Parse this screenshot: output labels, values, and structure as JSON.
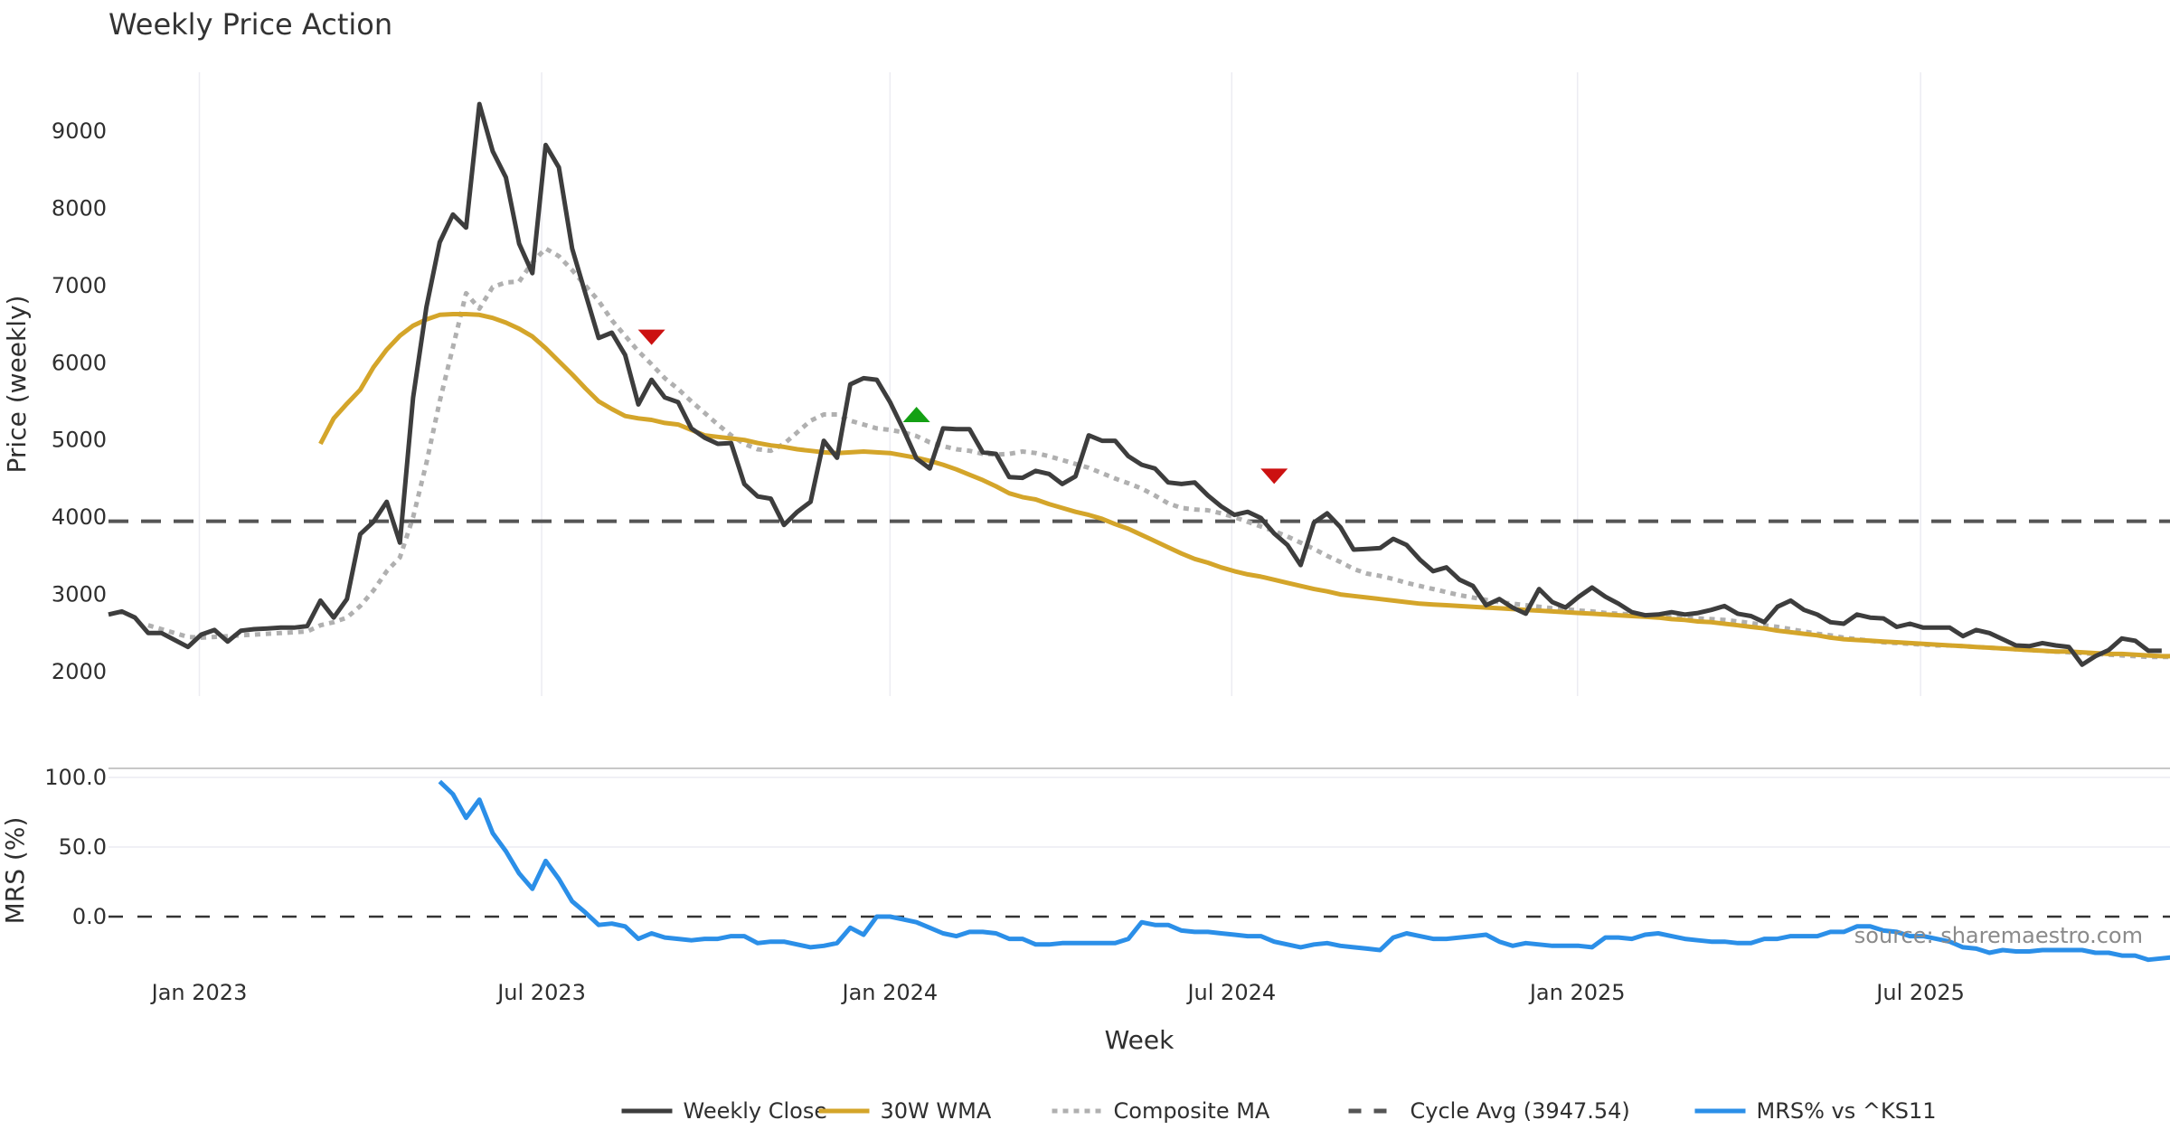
{
  "chart_data": [
    {
      "panel": "price",
      "type": "line",
      "title": "Weekly Price Action",
      "xlabel": "Week",
      "ylabel": "Price (weekly)",
      "ylim": [
        1700,
        9800
      ],
      "yticks": [
        2000,
        3000,
        4000,
        5000,
        6000,
        7000,
        8000,
        9000
      ],
      "x_start": "2022-11-21",
      "x_step_days": 7,
      "grid": "vertical",
      "series": [
        {
          "name": "Weekly Close",
          "color": "#3d3d3d",
          "style": "solid",
          "start_index": 0,
          "values": [
            2740,
            2780,
            2700,
            2500,
            2500,
            2410,
            2320,
            2480,
            2540,
            2390,
            2530,
            2550,
            2560,
            2570,
            2570,
            2590,
            2920,
            2700,
            2940,
            3780,
            3940,
            4200,
            3670,
            5550,
            6720,
            7560,
            7920,
            7750,
            9350,
            8740,
            8400,
            7540,
            7160,
            8820,
            8530,
            7480,
            6900,
            6320,
            6390,
            6100,
            5460,
            5780,
            5550,
            5490,
            5150,
            5030,
            4950,
            4960,
            4430,
            4270,
            4240,
            3900,
            4070,
            4200,
            4990,
            4770,
            5720,
            5800,
            5780,
            5490,
            5140,
            4760,
            4630,
            5150,
            5140,
            5140,
            4840,
            4820,
            4520,
            4510,
            4600,
            4560,
            4430,
            4530,
            5060,
            4990,
            4990,
            4790,
            4680,
            4630,
            4450,
            4430,
            4450,
            4280,
            4140,
            4030,
            4070,
            3990,
            3790,
            3640,
            3380,
            3930,
            4050,
            3870,
            3580,
            3590,
            3600,
            3720,
            3640,
            3450,
            3300,
            3350,
            3190,
            3110,
            2860,
            2940,
            2830,
            2750,
            3070,
            2900,
            2830,
            2970,
            3090,
            2970,
            2880,
            2770,
            2730,
            2740,
            2770,
            2740,
            2760,
            2800,
            2850,
            2750,
            2720,
            2640,
            2840,
            2920,
            2800,
            2740,
            2640,
            2620,
            2740,
            2700,
            2690,
            2580,
            2620,
            2570,
            2570,
            2570,
            2460,
            2540,
            2500,
            2420,
            2340,
            2330,
            2370,
            2340,
            2320,
            2090,
            2200,
            2280,
            2430,
            2400,
            2270,
            2270
          ]
        },
        {
          "name": "30W WMA",
          "color": "#d4a52a",
          "style": "solid",
          "start_index": 16,
          "values": [
            4950,
            5280,
            5470,
            5650,
            5940,
            6170,
            6350,
            6480,
            6560,
            6620,
            6630,
            6630,
            6620,
            6580,
            6520,
            6440,
            6340,
            6190,
            6020,
            5850,
            5670,
            5500,
            5400,
            5310,
            5280,
            5260,
            5220,
            5200,
            5130,
            5060,
            5040,
            5020,
            5000,
            4960,
            4930,
            4910,
            4880,
            4860,
            4840,
            4830,
            4840,
            4850,
            4840,
            4830,
            4800,
            4770,
            4730,
            4680,
            4620,
            4550,
            4480,
            4400,
            4310,
            4260,
            4230,
            4170,
            4120,
            4070,
            4030,
            3980,
            3910,
            3850,
            3770,
            3690,
            3610,
            3530,
            3460,
            3410,
            3350,
            3300,
            3260,
            3230,
            3190,
            3150,
            3110,
            3070,
            3040,
            3000,
            2980,
            2960,
            2940,
            2920,
            2900,
            2880,
            2870,
            2860,
            2850,
            2840,
            2830,
            2820,
            2810,
            2800,
            2790,
            2780,
            2770,
            2760,
            2750,
            2740,
            2730,
            2720,
            2710,
            2700,
            2680,
            2670,
            2650,
            2640,
            2620,
            2600,
            2580,
            2560,
            2530,
            2510,
            2490,
            2470,
            2440,
            2420,
            2410,
            2400,
            2390,
            2380,
            2370,
            2360,
            2350,
            2340,
            2330,
            2320,
            2310,
            2300,
            2290,
            2280,
            2270,
            2260,
            2260,
            2250,
            2240,
            2230,
            2230,
            2220,
            2210,
            2200,
            2200
          ]
        },
        {
          "name": "Composite MA",
          "color": "#b0b0b0",
          "style": "dotted",
          "start_index": 3,
          "values": [
            2600,
            2550,
            2500,
            2450,
            2440,
            2450,
            2460,
            2470,
            2480,
            2490,
            2500,
            2510,
            2520,
            2600,
            2640,
            2700,
            2850,
            3050,
            3300,
            3480,
            4000,
            4700,
            5500,
            6200,
            6900,
            6700,
            6980,
            7040,
            7050,
            7300,
            7480,
            7380,
            7200,
            7000,
            6800,
            6550,
            6350,
            6150,
            5980,
            5800,
            5660,
            5500,
            5350,
            5200,
            5060,
            4950,
            4880,
            4860,
            4950,
            5100,
            5250,
            5330,
            5330,
            5250,
            5200,
            5150,
            5130,
            5100,
            5050,
            4970,
            4920,
            4880,
            4860,
            4820,
            4810,
            4820,
            4850,
            4830,
            4790,
            4740,
            4690,
            4640,
            4570,
            4500,
            4440,
            4370,
            4280,
            4180,
            4120,
            4100,
            4090,
            4050,
            4000,
            3940,
            3880,
            3820,
            3750,
            3670,
            3590,
            3500,
            3420,
            3330,
            3270,
            3240,
            3200,
            3150,
            3110,
            3070,
            3030,
            2990,
            2960,
            2930,
            2900,
            2880,
            2860,
            2840,
            2820,
            2810,
            2790,
            2780,
            2760,
            2750,
            2740,
            2730,
            2720,
            2710,
            2700,
            2690,
            2680,
            2670,
            2650,
            2630,
            2600,
            2580,
            2550,
            2520,
            2490,
            2470,
            2440,
            2420,
            2400,
            2380,
            2370,
            2360,
            2350,
            2340,
            2340,
            2330,
            2320,
            2310,
            2300,
            2290,
            2280,
            2270,
            2260,
            2250,
            2240,
            2230,
            2220,
            2210,
            2200,
            2190,
            2190,
            2190
          ]
        },
        {
          "name": "Cycle Avg (3947.54)",
          "color": "#555555",
          "style": "dashed",
          "value": 3947.54
        }
      ],
      "markers": [
        {
          "type": "sell",
          "shape": "triangle-down",
          "color": "#cc1111",
          "index": 41,
          "value": 6330
        },
        {
          "type": "buy",
          "shape": "triangle-up",
          "color": "#14a014",
          "index": 61,
          "value": 5330
        },
        {
          "type": "sell",
          "shape": "triangle-down",
          "color": "#cc1111",
          "index": 88,
          "value": 4530
        }
      ],
      "xticks": [
        {
          "label": "Jan 2023",
          "index": 6.86
        },
        {
          "label": "Jul 2023",
          "index": 32.7
        },
        {
          "label": "Jan 2024",
          "index": 59.0
        },
        {
          "label": "Jul 2024",
          "index": 84.8
        },
        {
          "label": "Jan 2025",
          "index": 110.9
        },
        {
          "label": "Jul 2025",
          "index": 136.8
        }
      ]
    },
    {
      "panel": "mrs",
      "type": "line",
      "ylabel": "MRS (%)",
      "ylim": [
        -35,
        105
      ],
      "yticks": [
        0.0,
        50.0,
        100.0
      ],
      "ytick_labels": [
        "0.0",
        "50.0",
        "100.0"
      ],
      "zero_line": "dashed",
      "series": [
        {
          "name": "MRS% vs ^KS11",
          "color": "#2b8fe8",
          "style": "solid",
          "start_index": 25,
          "values": [
            97,
            88,
            71,
            84,
            60,
            47,
            31,
            20,
            40,
            27,
            11,
            3,
            -6,
            -5,
            -7,
            -16,
            -12,
            -15,
            -16,
            -17,
            -16,
            -16,
            -14,
            -14,
            -19,
            -18,
            -18,
            -20,
            -22,
            -21,
            -19,
            -8,
            -13,
            0,
            0,
            -2,
            -4,
            -8,
            -12,
            -14,
            -11,
            -11,
            -12,
            -16,
            -16,
            -20,
            -20,
            -19,
            -19,
            -19,
            -19,
            -19,
            -16,
            -4,
            -6,
            -6,
            -10,
            -11,
            -11,
            -12,
            -13,
            -14,
            -14,
            -18,
            -20,
            -22,
            -20,
            -19,
            -21,
            -22,
            -23,
            -24,
            -15,
            -12,
            -14,
            -16,
            -16,
            -15,
            -14,
            -13,
            -18,
            -21,
            -19,
            -20,
            -21,
            -21,
            -21,
            -22,
            -15,
            -15,
            -16,
            -13,
            -12,
            -14,
            -16,
            -17,
            -18,
            -18,
            -19,
            -19,
            -16,
            -16,
            -14,
            -14,
            -14,
            -11,
            -11,
            -7,
            -7,
            -10,
            -11,
            -14,
            -14,
            -16,
            -18,
            -22,
            -23,
            -26,
            -24,
            -25,
            -25,
            -24,
            -24,
            -24,
            -24,
            -26,
            -26,
            -28,
            -28,
            -31,
            -30,
            -29,
            -28,
            -30,
            -33,
            -33
          ]
        }
      ]
    }
  ],
  "legend": {
    "position": "bottom-center",
    "items": [
      {
        "label": "Weekly Close",
        "color": "#3d3d3d",
        "style": "solid"
      },
      {
        "label": "30W WMA",
        "color": "#d4a52a",
        "style": "solid"
      },
      {
        "label": "Composite MA",
        "color": "#b0b0b0",
        "style": "dotted"
      },
      {
        "label": "Cycle Avg (3947.54)",
        "color": "#555555",
        "style": "dashed"
      },
      {
        "label": "MRS% vs ^KS11",
        "color": "#2b8fe8",
        "style": "solid"
      }
    ]
  },
  "watermark": "source: sharemaestro.com"
}
